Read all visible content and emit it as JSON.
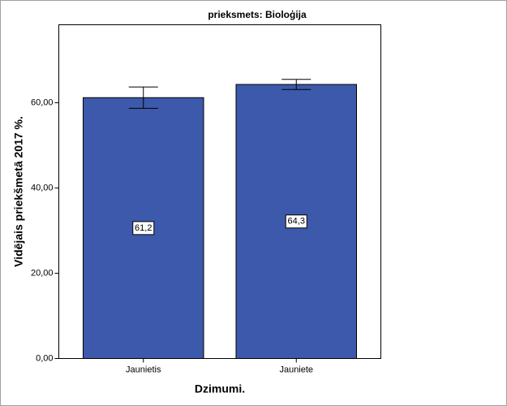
{
  "chart_data": {
    "type": "bar",
    "title": "prieksmets: Bioloģija",
    "x_label": "Dzimumi.",
    "y_label": "Vidējais priekšmetā 2017 %.",
    "categories": [
      "Jaunietis",
      "Jauniete"
    ],
    "values": [
      61.2,
      64.3
    ],
    "value_labels": [
      "61,2",
      "64,3"
    ],
    "errors": [
      2.5,
      1.2
    ],
    "color": "#3d59ab",
    "ylim": [
      0,
      78.3
    ],
    "yticks": [
      {
        "value": 0,
        "label": "0,00"
      },
      {
        "value": 20,
        "label": "20,00"
      },
      {
        "value": 40,
        "label": "40,00"
      },
      {
        "value": 60,
        "label": "60,00"
      }
    ],
    "grid": false
  }
}
